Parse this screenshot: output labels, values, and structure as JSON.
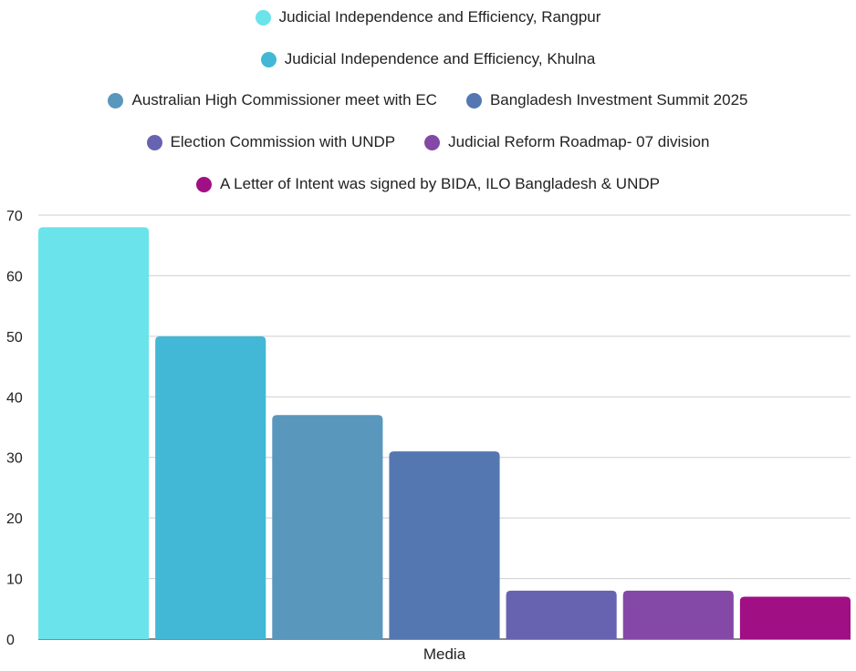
{
  "chart_data": {
    "type": "bar",
    "categories": [
      "Media"
    ],
    "xlabel": "",
    "ylabel": "",
    "ylim": [
      0,
      70
    ],
    "yticks": [
      0,
      10,
      20,
      30,
      40,
      50,
      60,
      70
    ],
    "grid": true,
    "legend_position": "top",
    "series": [
      {
        "name": "Judicial Independence and Efficiency, Rangpur",
        "values": [
          68
        ],
        "color": "#6ae4ea"
      },
      {
        "name": "Judicial Independence and Efficiency, Khulna",
        "values": [
          50
        ],
        "color": "#42b8d6"
      },
      {
        "name": "Australian High Commissioner meet with EC",
        "values": [
          37
        ],
        "color": "#5a97bc"
      },
      {
        "name": "Bangladesh Investment Summit 2025",
        "values": [
          31
        ],
        "color": "#5577b1"
      },
      {
        "name": "Election Commission with UNDP",
        "values": [
          8
        ],
        "color": "#6763b1"
      },
      {
        "name": "Judicial Reform Roadmap- 07 division",
        "values": [
          8
        ],
        "color": "#8448a6"
      },
      {
        "name": "A Letter of Intent was signed by BIDA, ILO Bangladesh & UNDP",
        "values": [
          7
        ],
        "color": "#a10f84"
      }
    ]
  }
}
